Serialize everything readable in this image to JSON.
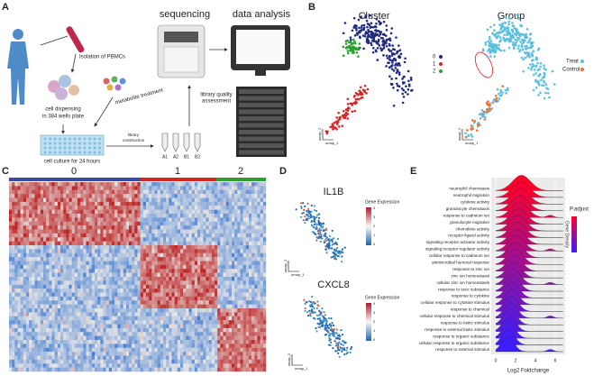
{
  "panel_a": {
    "label": "A",
    "headings": [
      "sequencing",
      "data analysis"
    ],
    "steps": [
      "Isolation of PBMCs",
      "cell dispensing",
      "in 384 wells plate",
      "metabolite treatment",
      "cell culture for 24 hours",
      "library",
      "construction",
      "library quality",
      "assessment"
    ],
    "tubes": [
      "A1",
      "A2",
      "B1",
      "B2"
    ]
  },
  "panel_b": {
    "label": "B",
    "titles": [
      "Cluster",
      "Group"
    ],
    "clusters": [
      "0",
      "1",
      "2"
    ],
    "groups": [
      "Treat",
      "Control"
    ],
    "axes": [
      "umap_1",
      "umap_2"
    ]
  },
  "panel_c": {
    "label": "C",
    "clusters": [
      "0",
      "1",
      "2"
    ]
  },
  "panel_d": {
    "label": "D",
    "genes": [
      "IL1B",
      "CXCL8"
    ],
    "legend": "Gene Expression",
    "scale": [
      "4",
      "3",
      "2",
      "1",
      "0"
    ],
    "axes": [
      "umap_1",
      "umap_2"
    ]
  },
  "panel_e": {
    "label": "E",
    "terms": [
      "neutrophil chemotaxis",
      "neutrophil migration",
      "cytokine activity",
      "granulocyte chemotaxis",
      "response to cadmium ion",
      "granulocyte migration",
      "chemokine activity",
      "receptor ligand activity",
      "signaling receptor activator activity",
      "signaling receptor regulator activity",
      "cellular response to cadmium ion",
      "antimicrobial humoral response",
      "response to zinc ion",
      "zinc ion homeostasis",
      "cellular zinc ion homeostasis",
      "response to toxic substance",
      "response to cytokine",
      "cellular response to cytokine stimulus",
      "response to chemical",
      "cellular response to chemical stimulus",
      "response to biotic stimulus",
      "response to external biotic stimulus",
      "response to organic substance",
      "cellular response to organic substance",
      "response to external stimulus"
    ],
    "xlabel": "Log2 Foldchange",
    "xticks": [
      "0",
      "2",
      "4",
      "6"
    ],
    "legend": "P.adjust",
    "legend2": "Gene Density"
  }
}
